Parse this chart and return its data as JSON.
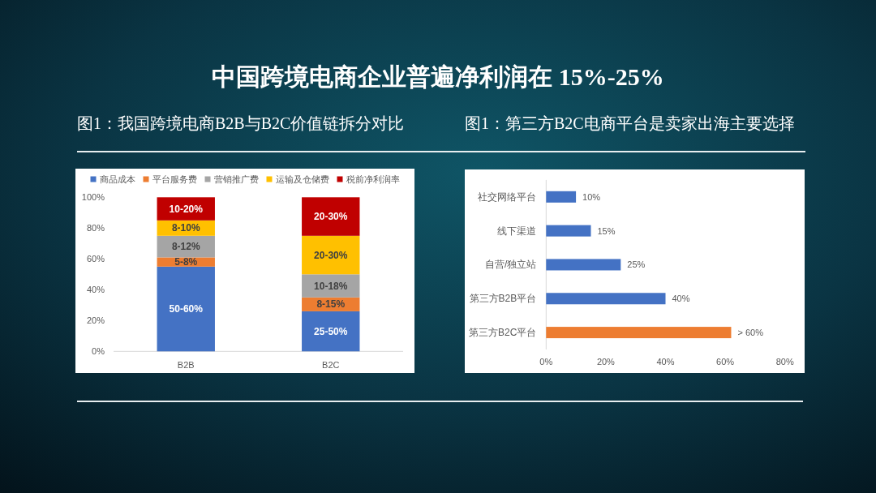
{
  "chart_data": [
    {
      "type": "other",
      "title": "中国跨境电商企业普遍净利润在 15%-25%"
    },
    {
      "type": "bar",
      "title": "图1：我国跨境电商B2B与B2C价值链拆分对比",
      "stacked": true,
      "categories": [
        "B2B",
        "B2C"
      ],
      "series": [
        {
          "name": "商品成本",
          "color": "#4472c4",
          "values": [
            55,
            26
          ]
        },
        {
          "name": "平台服务费",
          "color": "#ed7d31",
          "values": [
            6,
            9
          ]
        },
        {
          "name": "营销推广费",
          "color": "#a5a5a5",
          "values": [
            14,
            15
          ]
        },
        {
          "name": "运输及仓储费",
          "color": "#ffc000",
          "values": [
            10,
            25
          ]
        },
        {
          "name": "税前净利润率",
          "color": "#c00000",
          "values": [
            15,
            25
          ]
        }
      ],
      "annotations": [
        "50-60%",
        "5-8%",
        "8-12%",
        "8-10%",
        "10-20%",
        "25-50%",
        "8-15%",
        "10-18%",
        "20-30%",
        "20-30%"
      ],
      "ylim": [
        0,
        100
      ],
      "yticks": [
        {
          "value": 0,
          "label": "0%"
        },
        {
          "value": 20,
          "label": "20%"
        },
        {
          "value": 40,
          "label": "40%"
        },
        {
          "value": 60,
          "label": "60%"
        },
        {
          "value": 80,
          "label": "80%"
        },
        {
          "value": 100,
          "label": "100%"
        }
      ],
      "legend": "top"
    },
    {
      "type": "bar",
      "orientation": "horizontal",
      "title": "图1：第三方B2C电商平台是卖家出海主要选择",
      "categories": [
        "社交网络平台",
        "线下渠道",
        "自营/独立站",
        "第三方B2B平台",
        "第三方B2C平台"
      ],
      "values": [
        10,
        15,
        25,
        40,
        62
      ],
      "colors": [
        "#4472c4",
        "#4472c4",
        "#4472c4",
        "#4472c4",
        "#ed7d31"
      ],
      "value_labels": [
        "10%",
        "15%",
        "25%",
        "40%",
        "> 60%"
      ],
      "xlim": [
        0,
        80
      ],
      "xticks": [
        {
          "value": 0,
          "label": "0%"
        },
        {
          "value": 20,
          "label": "20%"
        },
        {
          "value": 40,
          "label": "40%"
        },
        {
          "value": 60,
          "label": "60%"
        },
        {
          "value": 80,
          "label": "80%"
        }
      ]
    }
  ]
}
